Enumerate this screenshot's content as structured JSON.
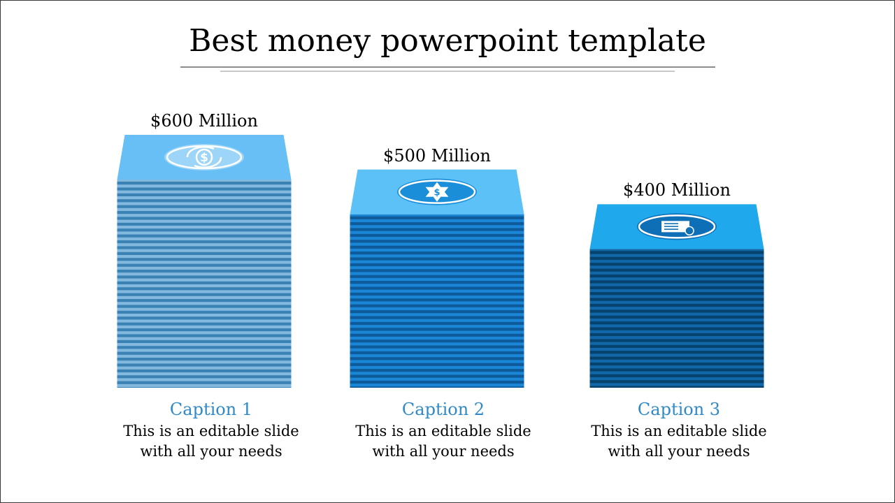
{
  "slide": {
    "title": "Best money powerpoint template"
  },
  "colors": {
    "caption": "#2f8ac7",
    "stack1_top": "#67bff5",
    "stack1_body": "#84b9df",
    "stack1_stripe": "#3b82b4",
    "stack2_top": "#5cc1f7",
    "stack2_body": "#1b86d6",
    "stack2_stripe": "#0d5b9a",
    "stack3_top": "#1fa9ec",
    "stack3_body": "#1267a8",
    "stack3_stripe": "#05426e"
  },
  "chart_data": {
    "type": "bar",
    "categories": [
      "Caption 1",
      "Caption 2",
      "Caption 3"
    ],
    "values": [
      600,
      500,
      400
    ],
    "value_labels": [
      "$600 Million",
      "$500 Million",
      "$400 Million"
    ],
    "icons": [
      "dollar-exchange-icon",
      "dollar-badge-icon",
      "check-payment-icon"
    ],
    "title": "",
    "xlabel": "",
    "ylabel": "",
    "unit": "$ Million",
    "ylim": [
      0,
      600
    ],
    "grid": false
  },
  "captions": [
    {
      "title": "Caption 1",
      "line1": "This is an editable slide",
      "line2": "with all your needs"
    },
    {
      "title": "Caption 2",
      "line1": "This is an editable slide",
      "line2": "with all your needs"
    },
    {
      "title": "Caption 3",
      "line1": "This is an editable slide",
      "line2": "with all your needs"
    }
  ]
}
